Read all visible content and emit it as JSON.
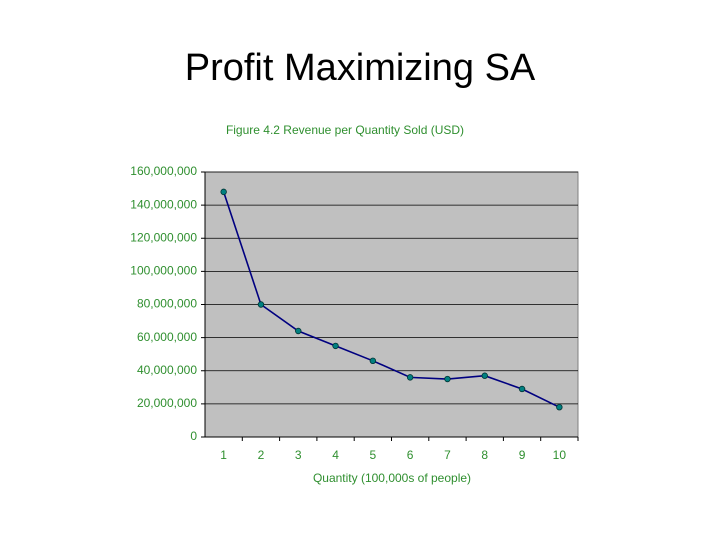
{
  "slide_title": "Profit Maximizing SA",
  "chart_data": {
    "type": "line",
    "title": "Figure 4.2  Revenue per Quantity Sold (USD)",
    "x_label": "Quantity (100,000s of people)",
    "categories": [
      1,
      2,
      3,
      4,
      5,
      6,
      7,
      8,
      9,
      10
    ],
    "series": [
      {
        "color": "#000080",
        "marker_color": "#008080",
        "values": [
          148000000,
          80000000,
          64000000,
          55000000,
          46000000,
          36000000,
          35000000,
          37000000,
          29000000,
          18000000
        ]
      }
    ],
    "ylim": [
      0,
      160000000
    ],
    "yticks": [
      0,
      {
        "value": 20000000,
        "label": "20,000,000"
      },
      {
        "value": 40000000,
        "label": "40,000,000"
      },
      {
        "value": 60000000,
        "label": "60,000,000"
      },
      {
        "value": 80000000,
        "label": "80,000,000"
      },
      {
        "value": 100000000,
        "label": "100,000,000"
      },
      {
        "value": 120000000,
        "label": "120,000,000"
      },
      {
        "value": 140000000,
        "label": "140,000,000"
      },
      {
        "value": 160000000,
        "label": "160,000,000"
      }
    ],
    "grid": true,
    "plot_background": "#c0c0c0"
  }
}
